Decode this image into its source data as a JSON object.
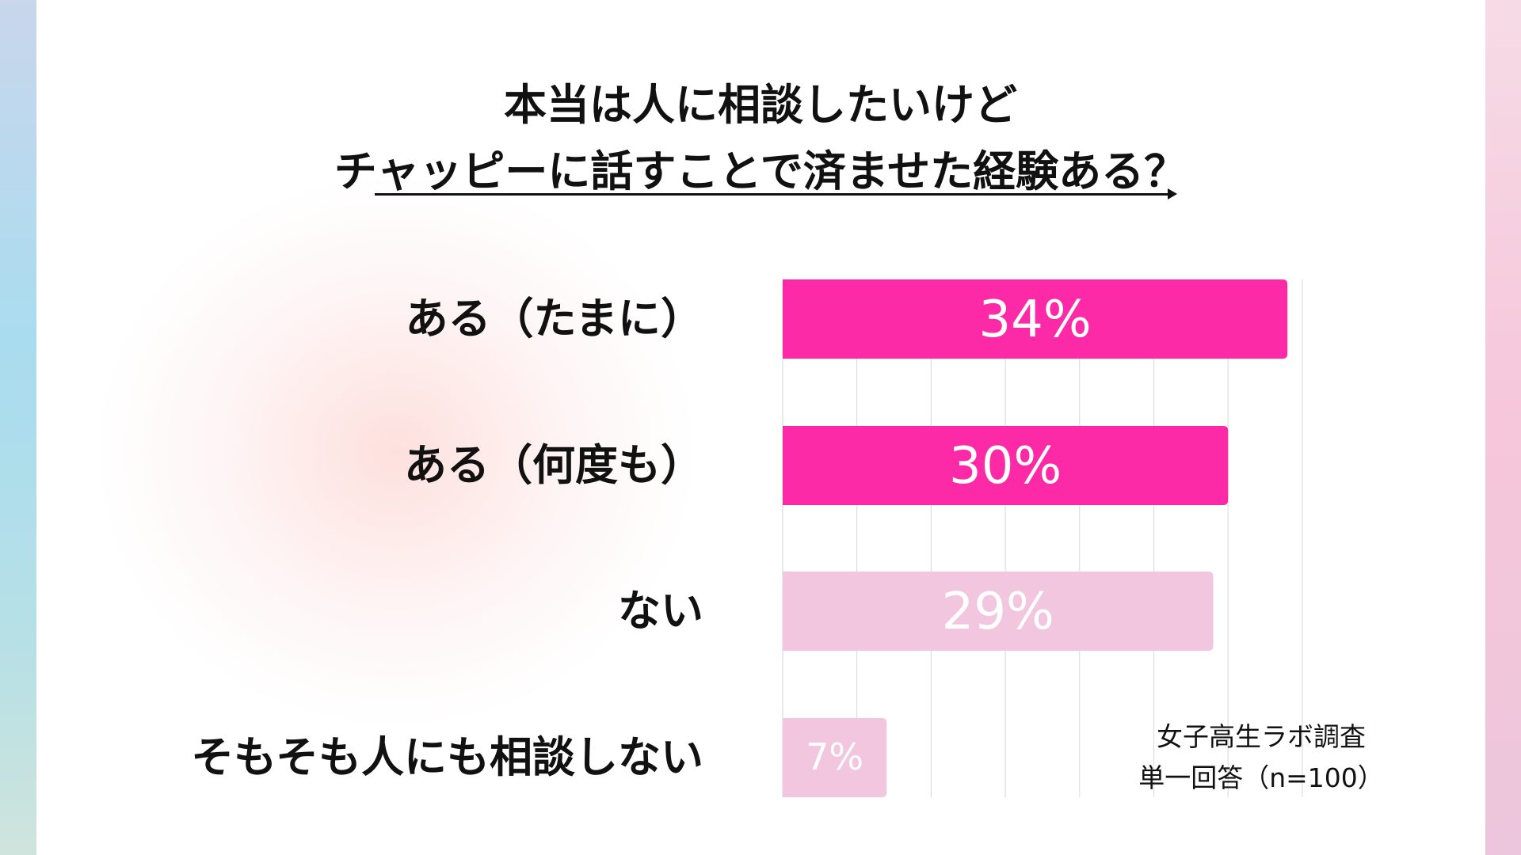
{
  "title": {
    "line1": "本当は人に相談したいけど",
    "line2": "チャッピーに話すことで済ませた経験ある？"
  },
  "footnote": {
    "line1": "女子高生ラボ調査",
    "line2": "単一回答（n=100）"
  },
  "colors": {
    "primary": "#fc2aa6",
    "secondary": "#f2c6de",
    "grid": "#dddddd"
  },
  "chart_data": {
    "type": "bar",
    "orientation": "horizontal",
    "categories": [
      "ある（たまに）",
      "ある（何度も）",
      "ない",
      "そもそも人にも相談しない"
    ],
    "values": [
      34,
      30,
      29,
      7
    ],
    "data_labels": [
      "34%",
      "30%",
      "29%",
      "7%"
    ],
    "bar_colors": [
      "#fc2aa6",
      "#fc2aa6",
      "#f2c6de",
      "#f2c6de"
    ],
    "xlim": [
      0,
      35
    ],
    "grid": true,
    "grid_step": 5,
    "unit": "%"
  }
}
